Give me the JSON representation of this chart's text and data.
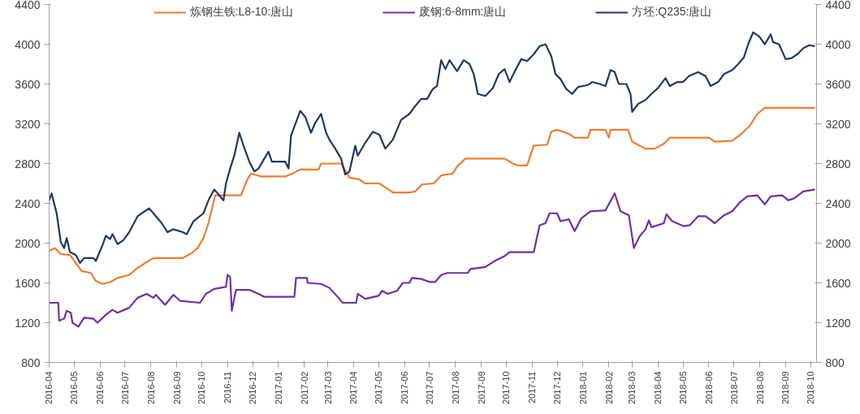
{
  "chart_data": {
    "type": "line",
    "xlim": [
      "2016-04-01",
      "2018-10-08"
    ],
    "xticks": [
      "2016-04",
      "2016-05",
      "2016-06",
      "2016-07",
      "2016-08",
      "2016-09",
      "2016-10",
      "2016-11",
      "2016-12",
      "2017-01",
      "2017-02",
      "2017-03",
      "2017-04",
      "2017-05",
      "2017-06",
      "2017-07",
      "2017-08",
      "2017-09",
      "2017-10",
      "2017-11",
      "2017-12",
      "2018-01",
      "2018-02",
      "2018-03",
      "2018-04",
      "2018-05",
      "2018-06",
      "2018-07",
      "2018-08",
      "2018-09",
      "2018-10"
    ],
    "ylim": [
      800,
      4400
    ],
    "yticks": [
      800,
      1200,
      1600,
      2000,
      2400,
      2800,
      3200,
      3600,
      4000,
      4400
    ],
    "y2lim": [
      800,
      4400
    ],
    "y2ticks": [
      800,
      1200,
      1600,
      2000,
      2400,
      2800,
      3200,
      3600,
      4000,
      4400
    ],
    "grid": false,
    "legend": "top",
    "marker": "none",
    "line_style": "solid",
    "series": [
      {
        "name": "炼钢生铁:L8-10:唐山",
        "color": "#ed7d31",
        "x": [
          "2016-04-01",
          "2016-04-08",
          "2016-04-15",
          "2016-04-26",
          "2016-05-03",
          "2016-05-10",
          "2016-05-21",
          "2016-05-27",
          "2016-06-04",
          "2016-06-14",
          "2016-06-22",
          "2016-07-06",
          "2016-07-16",
          "2016-07-27",
          "2016-08-04",
          "2016-09-08",
          "2016-09-19",
          "2016-09-26",
          "2016-10-03",
          "2016-10-09",
          "2016-10-17",
          "2016-10-27",
          "2016-11-17",
          "2016-11-24",
          "2016-11-29",
          "2016-12-11",
          "2017-01-09",
          "2017-01-18",
          "2017-01-27",
          "2017-02-18",
          "2017-02-21",
          "2017-03-17",
          "2017-03-27",
          "2017-04-08",
          "2017-04-15",
          "2017-05-02",
          "2017-05-11",
          "2017-05-18",
          "2017-06-07",
          "2017-06-14",
          "2017-06-22",
          "2017-07-06",
          "2017-07-15",
          "2017-07-29",
          "2017-08-03",
          "2017-08-13",
          "2017-09-29",
          "2017-10-09",
          "2017-10-15",
          "2017-10-26",
          "2017-11-03",
          "2017-11-19",
          "2017-11-24",
          "2017-12-01",
          "2017-12-15",
          "2017-12-22",
          "2018-01-07",
          "2018-01-10",
          "2018-01-28",
          "2018-02-01",
          "2018-02-03",
          "2018-02-24",
          "2018-03-01",
          "2018-03-10",
          "2018-03-17",
          "2018-03-28",
          "2018-04-08",
          "2018-04-15",
          "2018-06-01",
          "2018-06-08",
          "2018-06-29",
          "2018-07-10",
          "2018-07-20",
          "2018-07-29",
          "2018-08-07",
          "2018-10-06"
        ],
        "values": [
          1920,
          1950,
          1890,
          1880,
          1800,
          1720,
          1700,
          1620,
          1590,
          1610,
          1650,
          1680,
          1750,
          1810,
          1850,
          1850,
          1900,
          1950,
          2050,
          2200,
          2480,
          2480,
          2480,
          2630,
          2700,
          2670,
          2670,
          2700,
          2740,
          2740,
          2800,
          2800,
          2660,
          2640,
          2600,
          2600,
          2550,
          2510,
          2510,
          2520,
          2590,
          2600,
          2680,
          2700,
          2770,
          2850,
          2850,
          2800,
          2780,
          2780,
          2980,
          2990,
          3120,
          3140,
          3100,
          3060,
          3060,
          3140,
          3140,
          3060,
          3140,
          3140,
          3020,
          2980,
          2950,
          2950,
          3000,
          3060,
          3060,
          3020,
          3030,
          3100,
          3180,
          3300,
          3360,
          3360
        ]
      },
      {
        "name": "废钢:6-8mm:唐山",
        "color": "#7030a0",
        "x": [
          "2016-04-01",
          "2016-04-12",
          "2016-04-13",
          "2016-04-19",
          "2016-04-22",
          "2016-04-27",
          "2016-04-29",
          "2016-05-06",
          "2016-05-13",
          "2016-05-24",
          "2016-05-29",
          "2016-06-08",
          "2016-06-16",
          "2016-06-22",
          "2016-07-06",
          "2016-07-16",
          "2016-07-27",
          "2016-08-04",
          "2016-08-07",
          "2016-08-18",
          "2016-08-28",
          "2016-09-05",
          "2016-09-29",
          "2016-10-06",
          "2016-10-16",
          "2016-10-30",
          "2016-11-01",
          "2016-11-04",
          "2016-11-06",
          "2016-11-11",
          "2016-11-27",
          "2016-12-08",
          "2016-12-15",
          "2017-01-20",
          "2017-01-22",
          "2017-02-04",
          "2017-02-05",
          "2017-02-21",
          "2017-03-03",
          "2017-03-14",
          "2017-03-19",
          "2017-04-04",
          "2017-04-06",
          "2017-04-15",
          "2017-05-01",
          "2017-05-05",
          "2017-05-12",
          "2017-05-23",
          "2017-05-30",
          "2017-06-07",
          "2017-06-10",
          "2017-06-21",
          "2017-07-01",
          "2017-07-08",
          "2017-07-15",
          "2017-07-22",
          "2017-08-16",
          "2017-08-19",
          "2017-09-06",
          "2017-09-17",
          "2017-09-29",
          "2017-10-05",
          "2017-11-03",
          "2017-11-10",
          "2017-11-17",
          "2017-11-22",
          "2017-12-01",
          "2017-12-05",
          "2017-12-15",
          "2017-12-22",
          "2017-12-30",
          "2018-01-10",
          "2018-01-28",
          "2018-02-08",
          "2018-02-15",
          "2018-02-25",
          "2018-03-03",
          "2018-03-10",
          "2018-03-17",
          "2018-03-21",
          "2018-03-24",
          "2018-04-08",
          "2018-04-11",
          "2018-04-18",
          "2018-05-02",
          "2018-05-09",
          "2018-05-19",
          "2018-05-28",
          "2018-06-08",
          "2018-06-19",
          "2018-06-29",
          "2018-07-08",
          "2018-07-17",
          "2018-07-29",
          "2018-08-07",
          "2018-08-14",
          "2018-08-28",
          "2018-09-04",
          "2018-09-11",
          "2018-09-22",
          "2018-10-06"
        ],
        "values": [
          1400,
          1400,
          1220,
          1240,
          1320,
          1300,
          1200,
          1160,
          1250,
          1240,
          1200,
          1280,
          1330,
          1300,
          1350,
          1450,
          1490,
          1450,
          1480,
          1380,
          1480,
          1420,
          1400,
          1490,
          1540,
          1560,
          1680,
          1660,
          1320,
          1530,
          1530,
          1490,
          1460,
          1460,
          1650,
          1650,
          1600,
          1590,
          1550,
          1450,
          1400,
          1400,
          1490,
          1440,
          1470,
          1520,
          1490,
          1520,
          1600,
          1600,
          1650,
          1640,
          1610,
          1610,
          1680,
          1700,
          1700,
          1740,
          1760,
          1820,
          1870,
          1910,
          1910,
          2180,
          2200,
          2300,
          2300,
          2220,
          2240,
          2120,
          2250,
          2320,
          2330,
          2500,
          2320,
          2280,
          1950,
          2070,
          2140,
          2230,
          2160,
          2200,
          2290,
          2220,
          2170,
          2180,
          2270,
          2270,
          2200,
          2280,
          2320,
          2410,
          2470,
          2480,
          2390,
          2470,
          2480,
          2430,
          2450,
          2520,
          2540
        ]
      },
      {
        "name": "方坯:Q235:唐山",
        "color": "#203864",
        "x": [
          "2016-04-01",
          "2016-04-04",
          "2016-04-10",
          "2016-04-15",
          "2016-04-19",
          "2016-04-22",
          "2016-04-26",
          "2016-05-03",
          "2016-05-08",
          "2016-05-13",
          "2016-05-24",
          "2016-05-27",
          "2016-06-04",
          "2016-06-08",
          "2016-06-13",
          "2016-06-16",
          "2016-06-22",
          "2016-06-29",
          "2016-07-06",
          "2016-07-16",
          "2016-07-21",
          "2016-07-30",
          "2016-08-07",
          "2016-08-14",
          "2016-08-21",
          "2016-08-28",
          "2016-09-08",
          "2016-09-13",
          "2016-09-21",
          "2016-10-03",
          "2016-10-09",
          "2016-10-16",
          "2016-10-22",
          "2016-10-27",
          "2016-10-30",
          "2016-11-04",
          "2016-11-09",
          "2016-11-15",
          "2016-11-20",
          "2016-11-27",
          "2016-12-03",
          "2016-12-08",
          "2016-12-15",
          "2016-12-20",
          "2016-12-24",
          "2017-01-09",
          "2017-01-13",
          "2017-01-16",
          "2017-01-27",
          "2017-02-02",
          "2017-02-09",
          "2017-02-14",
          "2017-02-21",
          "2017-02-27",
          "2017-03-03",
          "2017-03-10",
          "2017-03-17",
          "2017-03-22",
          "2017-03-27",
          "2017-04-03",
          "2017-04-06",
          "2017-04-15",
          "2017-04-24",
          "2017-05-02",
          "2017-05-09",
          "2017-05-18",
          "2017-05-28",
          "2017-06-07",
          "2017-06-14",
          "2017-06-21",
          "2017-06-28",
          "2017-07-05",
          "2017-07-10",
          "2017-07-15",
          "2017-07-20",
          "2017-07-25",
          "2017-08-03",
          "2017-08-11",
          "2017-08-18",
          "2017-08-23",
          "2017-08-28",
          "2017-09-06",
          "2017-09-15",
          "2017-09-22",
          "2017-09-29",
          "2017-10-05",
          "2017-10-12",
          "2017-10-19",
          "2017-10-26",
          "2017-11-03",
          "2017-11-10",
          "2017-11-17",
          "2017-11-24",
          "2017-11-29",
          "2017-12-05",
          "2017-12-12",
          "2017-12-19",
          "2017-12-26",
          "2018-01-07",
          "2018-01-12",
          "2018-01-21",
          "2018-01-28",
          "2018-02-03",
          "2018-02-08",
          "2018-02-13",
          "2018-02-22",
          "2018-02-27",
          "2018-03-01",
          "2018-03-08",
          "2018-03-17",
          "2018-03-24",
          "2018-04-01",
          "2018-04-10",
          "2018-04-15",
          "2018-04-24",
          "2018-05-01",
          "2018-05-08",
          "2018-05-19",
          "2018-05-28",
          "2018-06-03",
          "2018-06-12",
          "2018-06-19",
          "2018-06-29",
          "2018-07-06",
          "2018-07-13",
          "2018-07-18",
          "2018-07-24",
          "2018-07-31",
          "2018-08-07",
          "2018-08-14",
          "2018-08-17",
          "2018-08-24",
          "2018-09-01",
          "2018-09-08",
          "2018-09-15",
          "2018-09-22",
          "2018-09-29",
          "2018-10-06"
        ],
        "values": [
          2430,
          2500,
          2300,
          2010,
          1950,
          2050,
          1910,
          1880,
          1800,
          1850,
          1850,
          1820,
          1980,
          2075,
          2040,
          2090,
          1990,
          2030,
          2110,
          2270,
          2300,
          2350,
          2270,
          2200,
          2110,
          2140,
          2110,
          2090,
          2220,
          2300,
          2430,
          2540,
          2480,
          2430,
          2600,
          2750,
          2880,
          3110,
          2980,
          2820,
          2720,
          2750,
          2850,
          2920,
          2820,
          2820,
          2750,
          3080,
          3330,
          3270,
          3110,
          3210,
          3300,
          3110,
          3040,
          2950,
          2850,
          2690,
          2720,
          2980,
          2880,
          3010,
          3120,
          3090,
          2950,
          3040,
          3240,
          3300,
          3380,
          3450,
          3450,
          3550,
          3580,
          3840,
          3750,
          3840,
          3730,
          3840,
          3800,
          3700,
          3500,
          3480,
          3560,
          3700,
          3750,
          3620,
          3740,
          3850,
          3830,
          3900,
          3980,
          4000,
          3880,
          3700,
          3650,
          3550,
          3500,
          3570,
          3590,
          3620,
          3600,
          3580,
          3740,
          3720,
          3600,
          3600,
          3500,
          3320,
          3400,
          3440,
          3500,
          3560,
          3660,
          3580,
          3620,
          3620,
          3680,
          3720,
          3680,
          3580,
          3620,
          3700,
          3740,
          3800,
          3870,
          4000,
          4120,
          4080,
          4000,
          4100,
          4020,
          4000,
          3850,
          3860,
          3900,
          3960,
          3990,
          3980
        ]
      }
    ]
  }
}
